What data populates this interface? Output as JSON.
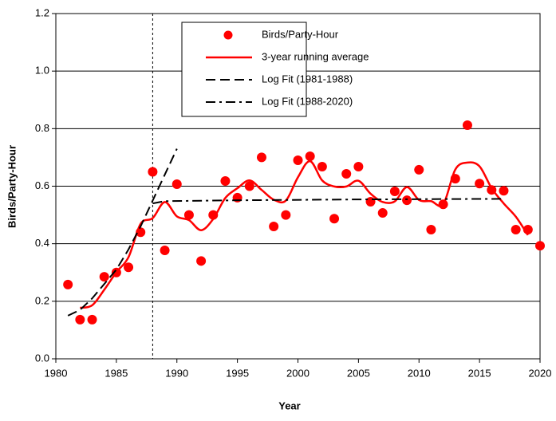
{
  "chart_data": {
    "type": "line",
    "x_label": "Year",
    "y_label": "Birds/Party-Hour",
    "xlim": [
      1980,
      2020
    ],
    "xticks": [
      1980,
      1985,
      1990,
      1995,
      2000,
      2005,
      2010,
      2015,
      2020
    ],
    "ylim": [
      0,
      1.2
    ],
    "yticks": [
      {
        "value": 0,
        "label": "0.0"
      },
      0.2,
      0.4,
      0.6,
      0.8,
      {
        "value": 1,
        "label": "1.0"
      },
      1.2
    ],
    "grid": true,
    "legend": "upper center",
    "vline": 1988,
    "series": [
      {
        "name": "Birds/Party-Hour",
        "color": "#ff0000",
        "style": "markers",
        "x": [
          1981,
          1982,
          1983,
          1984,
          1985,
          1986,
          1987,
          1988,
          1989,
          1990,
          1991,
          1992,
          1993,
          1994,
          1995,
          1996,
          1997,
          1998,
          1999,
          2000,
          2001,
          2002,
          2003,
          2004,
          2005,
          2006,
          2007,
          2008,
          2009,
          2010,
          2011,
          2012,
          2013,
          2014,
          2015,
          2016,
          2017,
          2018,
          2019,
          2020
        ],
        "values": [
          0.258,
          0.136,
          0.136,
          0.285,
          0.3,
          0.318,
          0.44,
          0.65,
          0.377,
          0.607,
          0.5,
          0.34,
          0.5,
          0.618,
          0.56,
          0.6,
          0.7,
          0.46,
          0.5,
          0.69,
          0.704,
          0.668,
          0.487,
          0.643,
          0.668,
          0.546,
          0.507,
          0.582,
          0.551,
          0.657,
          0.449,
          0.537,
          0.626,
          0.812,
          0.609,
          0.587,
          0.584,
          0.449,
          0.449,
          0.393
        ]
      },
      {
        "name": "3-year running average",
        "color": "#ff0000",
        "style": "solid",
        "x": [
          1982,
          1983,
          1984,
          1985,
          1986,
          1987,
          1988,
          1989,
          1990,
          1991,
          1992,
          1993,
          1994,
          1995,
          1996,
          1997,
          1998,
          1999,
          2000,
          2001,
          2002,
          2003,
          2004,
          2005,
          2006,
          2007,
          2008,
          2009,
          2010,
          2011,
          2012,
          2013,
          2014,
          2015,
          2016,
          2017,
          2018,
          2019
        ],
        "values": [
          0.177,
          0.186,
          0.24,
          0.301,
          0.353,
          0.469,
          0.489,
          0.545,
          0.495,
          0.482,
          0.447,
          0.486,
          0.559,
          0.593,
          0.62,
          0.587,
          0.553,
          0.55,
          0.631,
          0.687,
          0.62,
          0.599,
          0.599,
          0.619,
          0.574,
          0.545,
          0.547,
          0.597,
          0.552,
          0.548,
          0.537,
          0.658,
          0.682,
          0.669,
          0.593,
          0.54,
          0.494,
          0.43
        ]
      },
      {
        "name": "Log Fit (1981-1988)",
        "color": "#000000",
        "style": "dashed",
        "x": [
          1981,
          1982,
          1983,
          1984,
          1985,
          1986,
          1987,
          1988,
          1989,
          1990
        ],
        "values": [
          0.15,
          0.17,
          0.21,
          0.26,
          0.31,
          0.38,
          0.46,
          0.55,
          0.64,
          0.73
        ]
      },
      {
        "name": "Log Fit (1988-2020)",
        "color": "#000000",
        "style": "dashdot",
        "x": [
          1988,
          1989,
          1995,
          2005,
          2017
        ],
        "values": [
          0.54,
          0.548,
          0.551,
          0.554,
          0.556
        ]
      }
    ]
  }
}
